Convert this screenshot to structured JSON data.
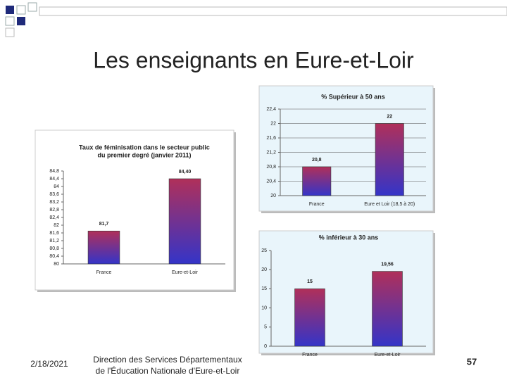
{
  "slide": {
    "title": "Les enseignants en Eure-et-Loir",
    "date": "2/18/2021",
    "footer": [
      "Direction des Services Départementaux",
      "de l'Éducation Nationale d'Eure-et-Loir"
    ],
    "page": "57"
  },
  "chart_data": [
    {
      "type": "bar",
      "title": [
        "Taux de féminisation dans le secteur public",
        "du premier degré (janvier 2011)"
      ],
      "categories": [
        "France",
        "Eure-et-Loir"
      ],
      "values": [
        81.7,
        84.4
      ],
      "value_labels": [
        "81,7",
        "84,40"
      ],
      "colors": [
        "#b0305a",
        "#3434c8"
      ],
      "grid": false,
      "ylim": [
        80,
        84.8
      ],
      "yticks": [
        80,
        {
          "value": 80.4,
          "label": "80,4"
        },
        {
          "value": 80.8,
          "label": "80,8"
        },
        {
          "value": 81.2,
          "label": "81,2"
        },
        {
          "value": 81.6,
          "label": "81,6"
        },
        82,
        {
          "value": 82.4,
          "label": "82,4"
        },
        {
          "value": 82.8,
          "label": "82,8"
        },
        {
          "value": 83.2,
          "label": "83,2"
        },
        {
          "value": 83.6,
          "label": "83,6"
        },
        84,
        {
          "value": 84.4,
          "label": "84,4"
        },
        {
          "value": 84.8,
          "label": "84,8"
        }
      ]
    },
    {
      "type": "bar",
      "title": [
        "% Supérieur à 50 ans"
      ],
      "categories": [
        "France",
        "Eure et Loir (18,5 à 20)"
      ],
      "values": [
        20.8,
        22
      ],
      "value_labels": [
        "20,8",
        "22"
      ],
      "colors": [
        "#b0305a",
        "#3434c8"
      ],
      "grid": true,
      "ylim": [
        20,
        22.4
      ],
      "yticks": [
        20,
        {
          "value": 20.4,
          "label": "20,4"
        },
        {
          "value": 20.8,
          "label": "20,8"
        },
        {
          "value": 21.2,
          "label": "21,2"
        },
        {
          "value": 21.6,
          "label": "21,6"
        },
        22,
        {
          "value": 22.4,
          "label": "22,4"
        }
      ]
    },
    {
      "type": "bar",
      "title": [
        "% inférieur à 30 ans"
      ],
      "categories": [
        "France",
        "Eure-et-Loir"
      ],
      "values": [
        15,
        19.56
      ],
      "value_labels": [
        "15",
        "19,56"
      ],
      "colors": [
        "#b0305a",
        "#3434c8"
      ],
      "grid": false,
      "ylim": [
        0,
        25
      ],
      "yticks": [
        0,
        5,
        10,
        15,
        20,
        25
      ]
    }
  ]
}
